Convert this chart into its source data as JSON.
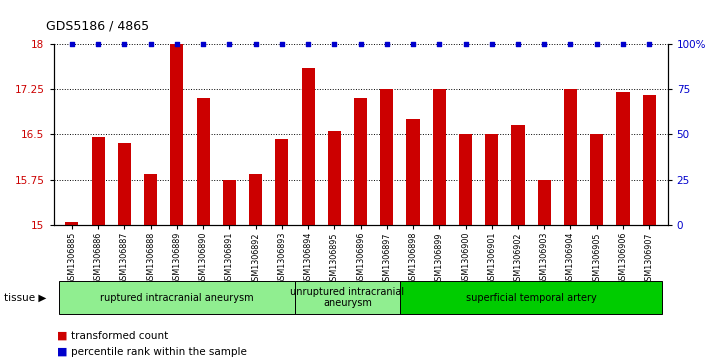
{
  "title": "GDS5186 / 4865",
  "samples": [
    "GSM1306885",
    "GSM1306886",
    "GSM1306887",
    "GSM1306888",
    "GSM1306889",
    "GSM1306890",
    "GSM1306891",
    "GSM1306892",
    "GSM1306893",
    "GSM1306894",
    "GSM1306895",
    "GSM1306896",
    "GSM1306897",
    "GSM1306898",
    "GSM1306899",
    "GSM1306900",
    "GSM1306901",
    "GSM1306902",
    "GSM1306903",
    "GSM1306904",
    "GSM1306905",
    "GSM1306906",
    "GSM1306907"
  ],
  "transformed_count": [
    15.05,
    16.45,
    16.35,
    15.85,
    18.0,
    17.1,
    15.75,
    15.85,
    16.42,
    17.6,
    16.55,
    17.1,
    17.25,
    16.75,
    17.25,
    16.5,
    16.5,
    16.65,
    15.75,
    17.25,
    16.5,
    17.2,
    17.15
  ],
  "percentile_rank": [
    100,
    100,
    100,
    100,
    100,
    100,
    100,
    100,
    100,
    100,
    100,
    100,
    100,
    100,
    100,
    100,
    100,
    100,
    100,
    100,
    100,
    100,
    100
  ],
  "ylim_left": [
    15,
    18
  ],
  "ylim_right": [
    0,
    100
  ],
  "yticks_left": [
    15,
    15.75,
    16.5,
    17.25,
    18
  ],
  "yticks_right": [
    0,
    25,
    50,
    75,
    100
  ],
  "ytick_labels_right": [
    "0",
    "25",
    "50",
    "75",
    "100%"
  ],
  "bar_color": "#cc0000",
  "dot_color": "#0000cc",
  "bg_color": "#ffffff",
  "grid_color": "#000000",
  "group_ranges": [
    {
      "start": 0,
      "end": 8,
      "color": "#90ee90",
      "label": "ruptured intracranial aneurysm"
    },
    {
      "start": 9,
      "end": 12,
      "color": "#90ee90",
      "label": "unruptured intracranial\naneurysm"
    },
    {
      "start": 13,
      "end": 22,
      "color": "#00cc00",
      "label": "superficial temporal artery"
    }
  ],
  "tissue_label": "tissue",
  "legend_items": [
    {
      "label": "transformed count",
      "color": "#cc0000"
    },
    {
      "label": "percentile rank within the sample",
      "color": "#0000cc"
    }
  ]
}
